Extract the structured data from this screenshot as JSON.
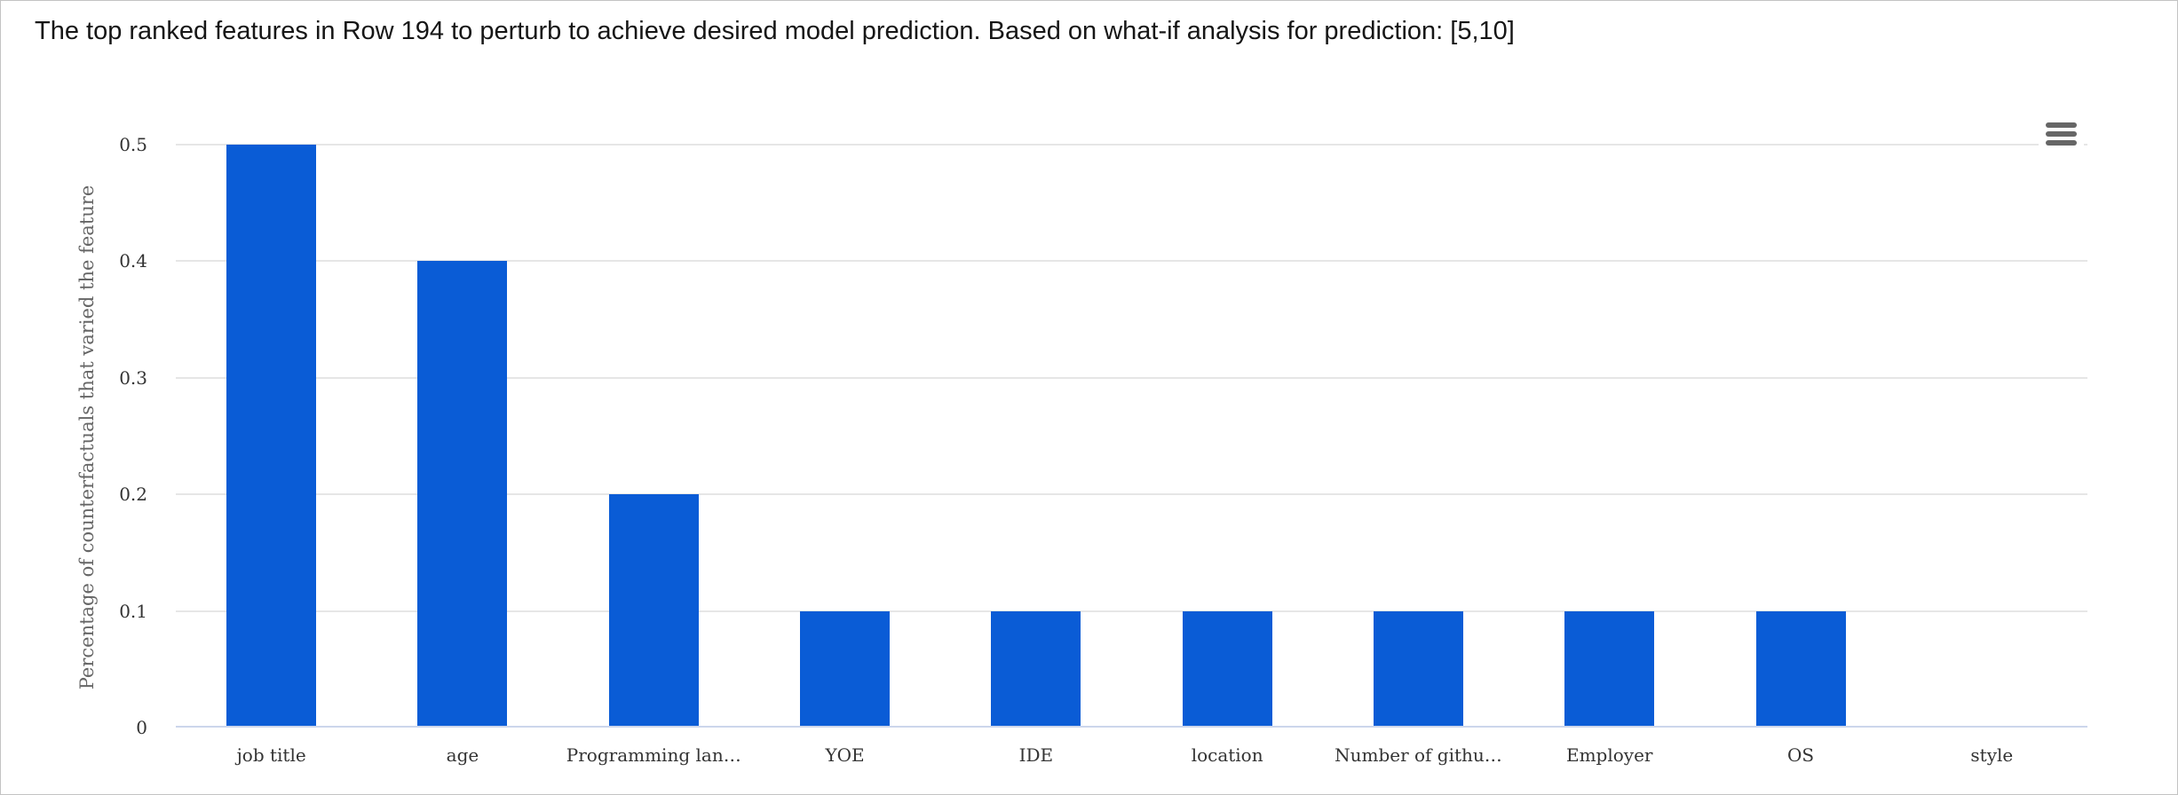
{
  "header": {
    "title": "The top ranked features in Row 194 to perturb to achieve desired model prediction. Based on what-if analysis for prediction: [5,10]"
  },
  "toolbar": {
    "menu_icon": "hamburger-icon"
  },
  "chart_data": {
    "type": "bar",
    "title": "",
    "categories": [
      "job title",
      "age",
      "Programming lan…",
      "YOE",
      "IDE",
      "location",
      "Number of githu…",
      "Employer",
      "OS",
      "style"
    ],
    "values": [
      0.5,
      0.4,
      0.2,
      0.1,
      0.1,
      0.1,
      0.1,
      0.1,
      0.1,
      0
    ],
    "xlabel": "",
    "ylabel": "Percentage of counterfactuals that varied the feature",
    "ylim": [
      0,
      0.5
    ],
    "yticks": [
      0,
      0.1,
      0.2,
      0.3,
      0.4,
      0.5
    ],
    "ytick_labels": [
      "0",
      "0.1",
      "0.2",
      "0.3",
      "0.4",
      "0.5"
    ],
    "grid": true,
    "legend_position": "none",
    "colors": {
      "bar": "#0a5cd6",
      "gridline": "#e6e6e6",
      "baseline": "#ccd6eb",
      "tick_label": "#333333",
      "axis_title": "#666666",
      "caption_text": "#161616",
      "menu_icon": "#666666"
    }
  }
}
